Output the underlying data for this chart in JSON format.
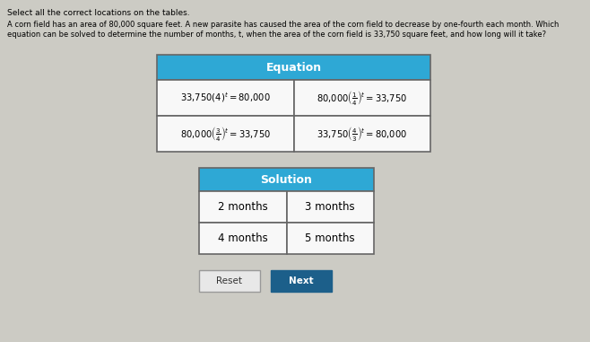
{
  "bg_color": "#cccbc4",
  "title_text": "Select all the correct locations on the tables.",
  "body_text1": "A corn field has an area of 80,000 square feet. A new parasite has caused the area of the corn field to decrease by one-fourth each month. Which",
  "body_text2": "equation can be solved to determine the number of months, t, when the area of the corn field is 33,750 square feet, and how long will it take?",
  "eq_header": "Equation",
  "header_color": "#2ea8d5",
  "sol_header": "Solution",
  "table_border": "#666666",
  "cell_bg": "#f8f8f8",
  "cell_texts": [
    [
      "$33{,}750(4)^t = 80{,}000$",
      "$80{,}000\\left(\\frac{1}{4}\\right)^t = 33{,}750$"
    ],
    [
      "$80{,}000\\left(\\frac{3}{4}\\right)^t = 33{,}750$",
      "$33{,}750\\left(\\frac{4}{3}\\right)^t = 80{,}000$"
    ]
  ],
  "sol_cells": [
    [
      "2 months",
      "3 months"
    ],
    [
      "4 months",
      "5 months"
    ]
  ],
  "reset_label": "Reset",
  "next_label": "Next",
  "next_btn_color": "#1c5f8a",
  "reset_btn_color": "#e8e8e8"
}
